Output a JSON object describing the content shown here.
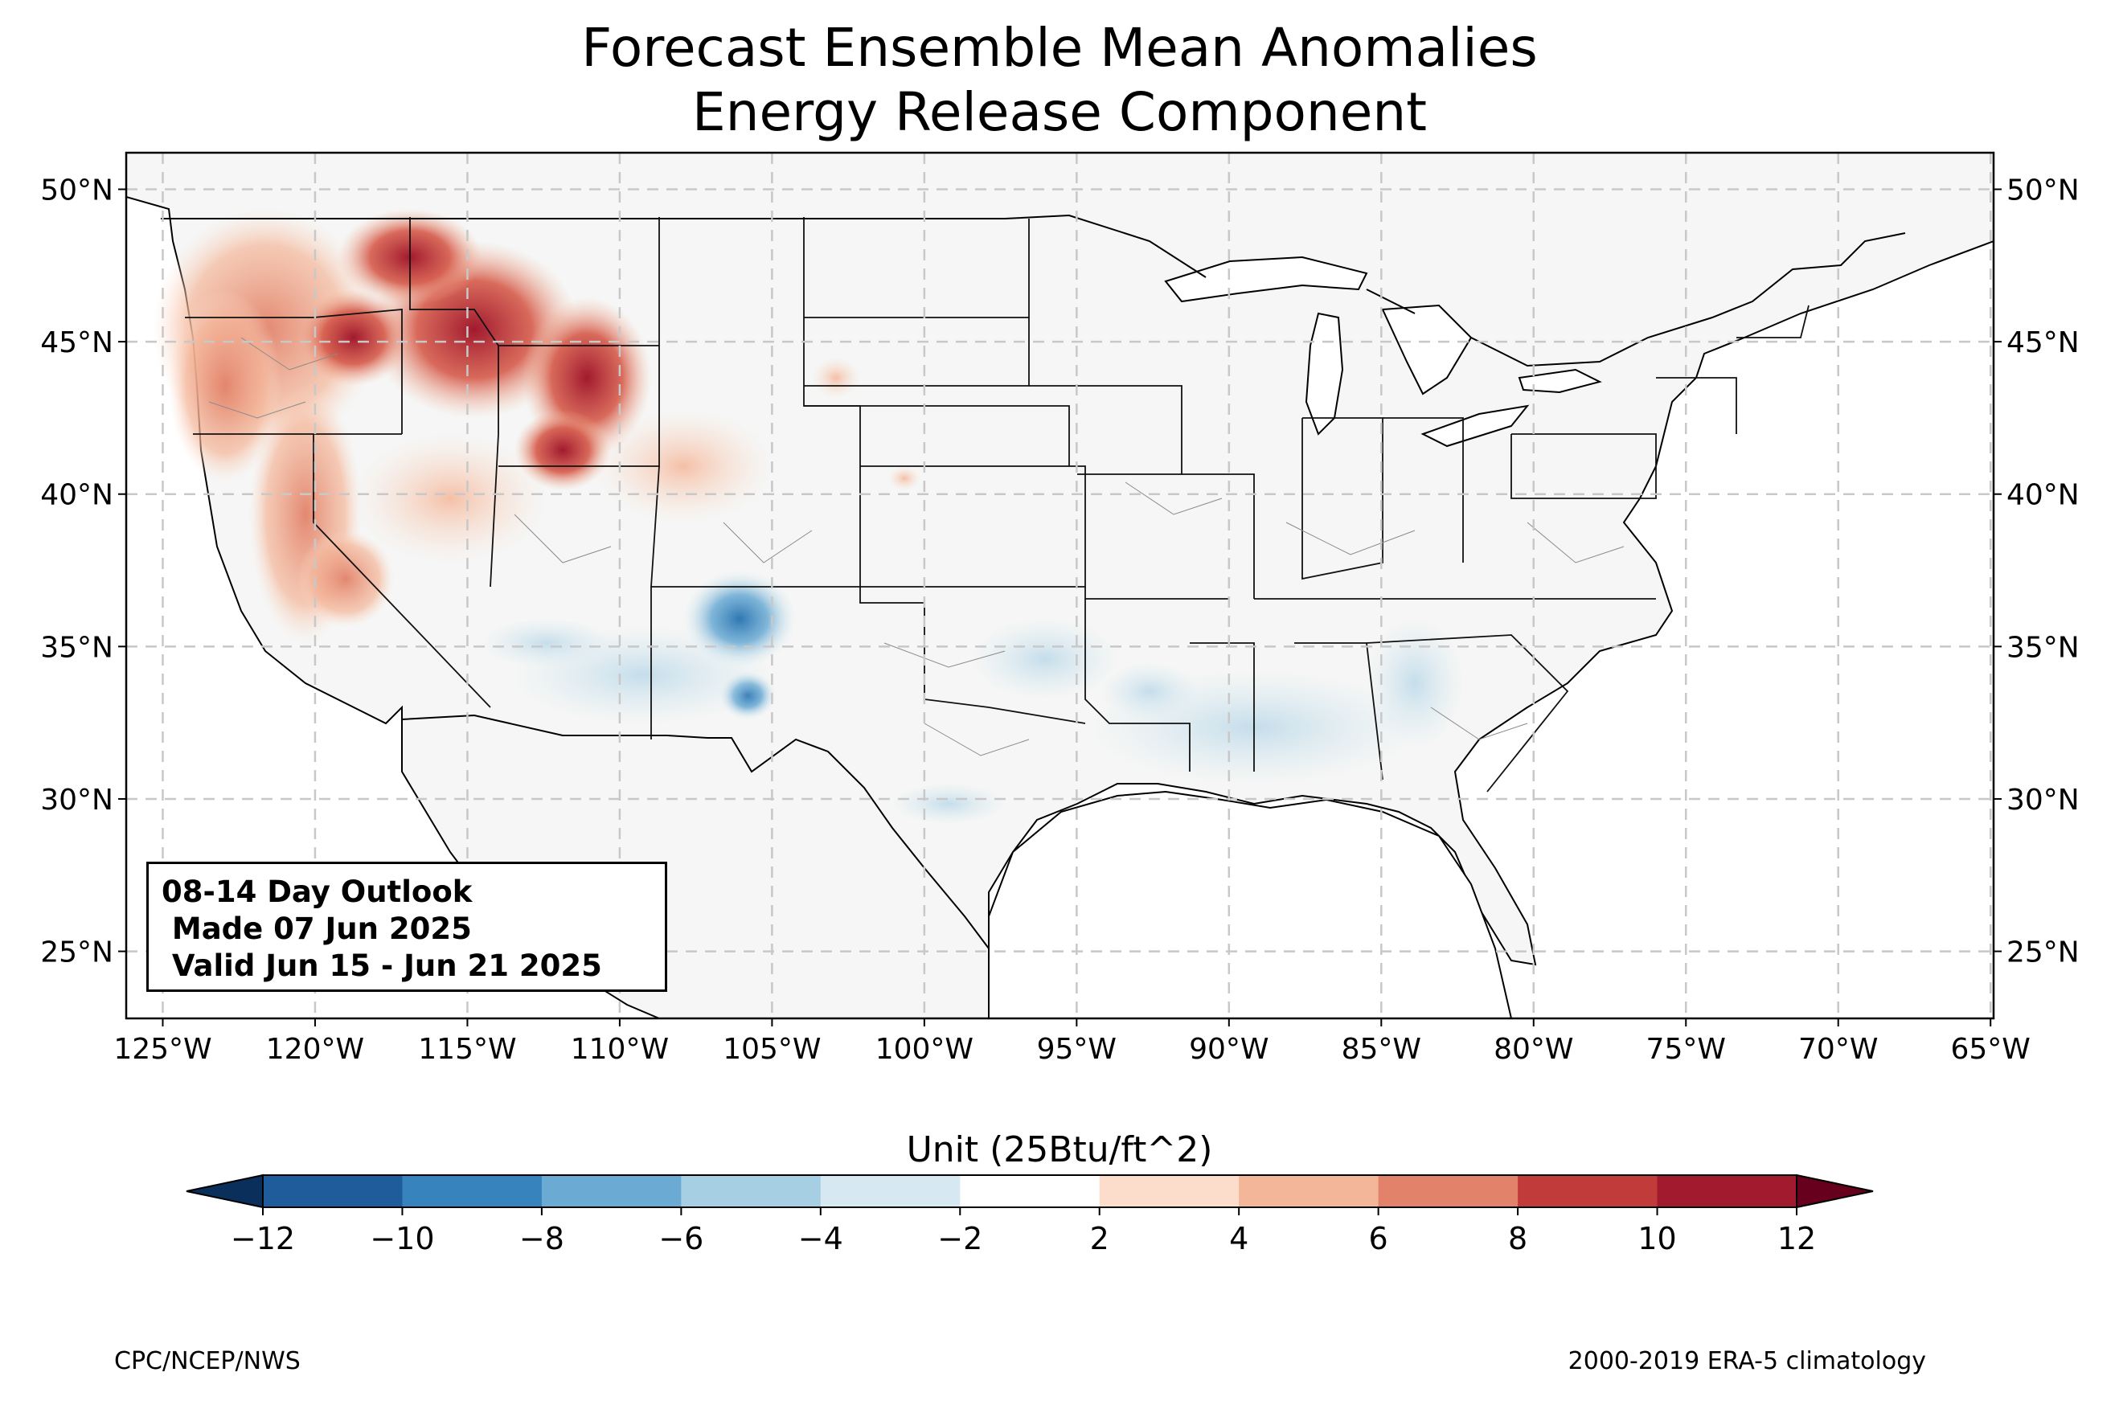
{
  "title": {
    "line1": "Forecast Ensemble Mean Anomalies",
    "line2": "Energy Release Component"
  },
  "map": {
    "lon_ticks": [
      -125,
      -120,
      -115,
      -110,
      -105,
      -100,
      -95,
      -90,
      -85,
      -80,
      -75,
      -70,
      -65
    ],
    "lon_labels": [
      "125°W",
      "120°W",
      "115°W",
      "110°W",
      "105°W",
      "100°W",
      "95°W",
      "90°W",
      "85°W",
      "80°W",
      "75°W",
      "70°W",
      "65°W"
    ],
    "lat_ticks": [
      50,
      45,
      40,
      35,
      30,
      25
    ],
    "lat_labels": [
      "50°N",
      "45°N",
      "40°N",
      "35°N",
      "30°N",
      "25°N"
    ],
    "lon_range": [
      -126.2,
      -64.9
    ],
    "lat_range": [
      22.8,
      51.2
    ],
    "gridlines": true,
    "land_color": "#f5f6f5",
    "anomaly_regions": [
      {
        "name": "pacific-northwest",
        "level": 6,
        "color": "#e2826a"
      },
      {
        "name": "northern-rockies-idaho-montana",
        "level": 12,
        "color": "#a11a2e"
      },
      {
        "name": "wyoming",
        "level": 10,
        "color": "#c13b3b"
      },
      {
        "name": "california-sierra",
        "level": 6,
        "color": "#e2826a"
      },
      {
        "name": "great-basin",
        "level": 4,
        "color": "#f4b699"
      },
      {
        "name": "colorado-front",
        "level": 2,
        "color": "#fcdccb"
      },
      {
        "name": "new-mexico",
        "level": -8,
        "color": "#3b88bf"
      },
      {
        "name": "arizona-nm-border",
        "level": -4,
        "color": "#a7cfe4"
      },
      {
        "name": "lower-mississippi",
        "level": -2,
        "color": "#d6e8f1"
      },
      {
        "name": "texas-coast",
        "level": -2,
        "color": "#d6e8f1"
      }
    ]
  },
  "colorbar": {
    "unit_label": "Unit (25Btu/ft^2)",
    "ticks": [
      "−12",
      "−10",
      "−8",
      "−6",
      "−4",
      "−2",
      "2",
      "4",
      "6",
      "8",
      "10",
      "12"
    ],
    "colors": [
      "#1f5c9c",
      "#3783bd",
      "#6aaad3",
      "#a7cfe4",
      "#d6e8f1",
      "#ffffff",
      "#fcdccb",
      "#f4b699",
      "#e2826a",
      "#c13b3b",
      "#a11a2e"
    ],
    "under_color": "#0a2f5b",
    "over_color": "#66001c"
  },
  "info_box": {
    "line1": "08-14 Day Outlook",
    "line2": " Made 07 Jun 2025",
    "line3": " Valid Jun 15 - Jun 21 2025"
  },
  "footer": {
    "left": "CPC/NCEP/NWS",
    "right": "2000-2019 ERA-5 climatology"
  }
}
